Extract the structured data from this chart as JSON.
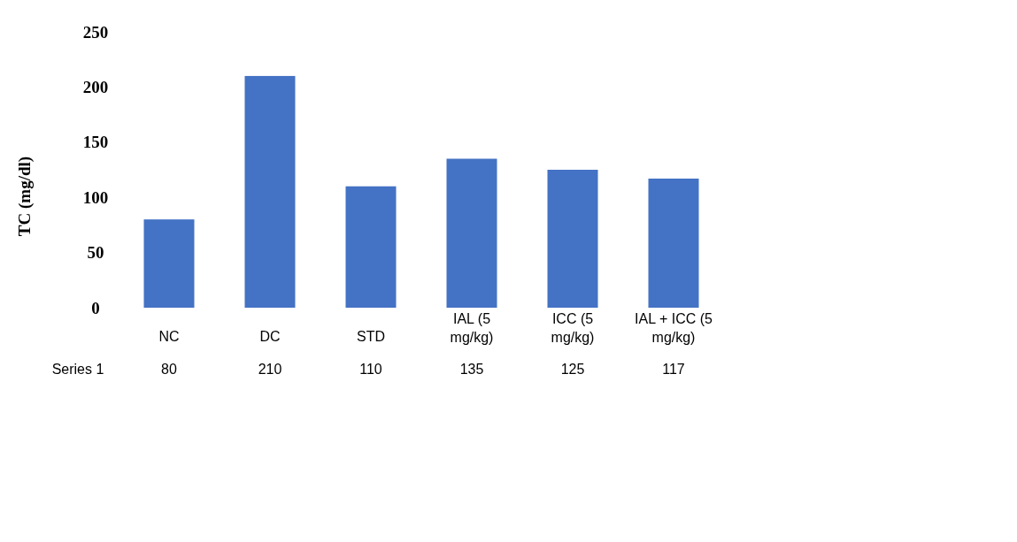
{
  "chart_data": {
    "type": "bar",
    "ylabel": "TC (mg/dl)",
    "categories": [
      "NC",
      "DC",
      "STD",
      "IAL (5 mg/kg)",
      "ICC (5 mg/kg)",
      "IAL + ICC (5 mg/kg)"
    ],
    "series": [
      {
        "name": "Series 1",
        "color": "#4472c4",
        "values": [
          80,
          210,
          110,
          135,
          125,
          117
        ]
      }
    ],
    "ylim": [
      0,
      250
    ],
    "yticks": [
      0,
      50,
      100,
      150,
      200,
      250
    ],
    "data_labels": true,
    "grid": false,
    "legend": false
  }
}
